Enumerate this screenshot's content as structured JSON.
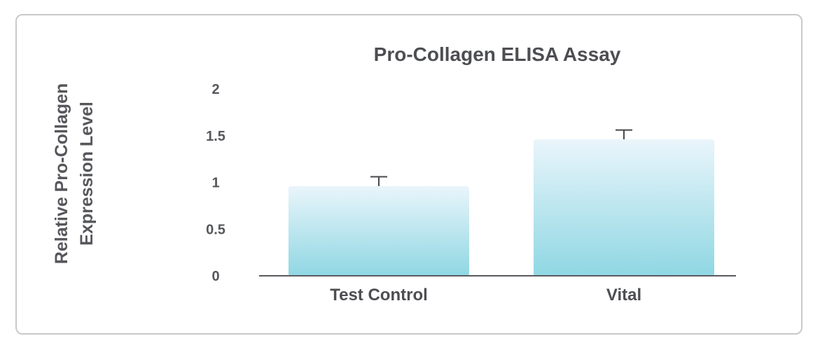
{
  "chart_data": {
    "type": "bar",
    "title": "Pro-Collagen ELISA Assay",
    "ylabel_lines": [
      "Relative Pro-Collagen",
      "Expression Level"
    ],
    "categories": [
      "Test Control",
      "Vital"
    ],
    "values": [
      0.96,
      1.46
    ],
    "error": [
      0.1,
      0.1
    ],
    "ylim": [
      0,
      2
    ],
    "yticks": [
      "0",
      "0.5",
      "1",
      "1.5",
      "2"
    ],
    "grid": false,
    "colors": {
      "bar_top": "#eaf5fb",
      "bar_bottom": "#8fd7e3",
      "axis": "#5a5a5e",
      "errorbar": "#4a4a4e"
    }
  }
}
